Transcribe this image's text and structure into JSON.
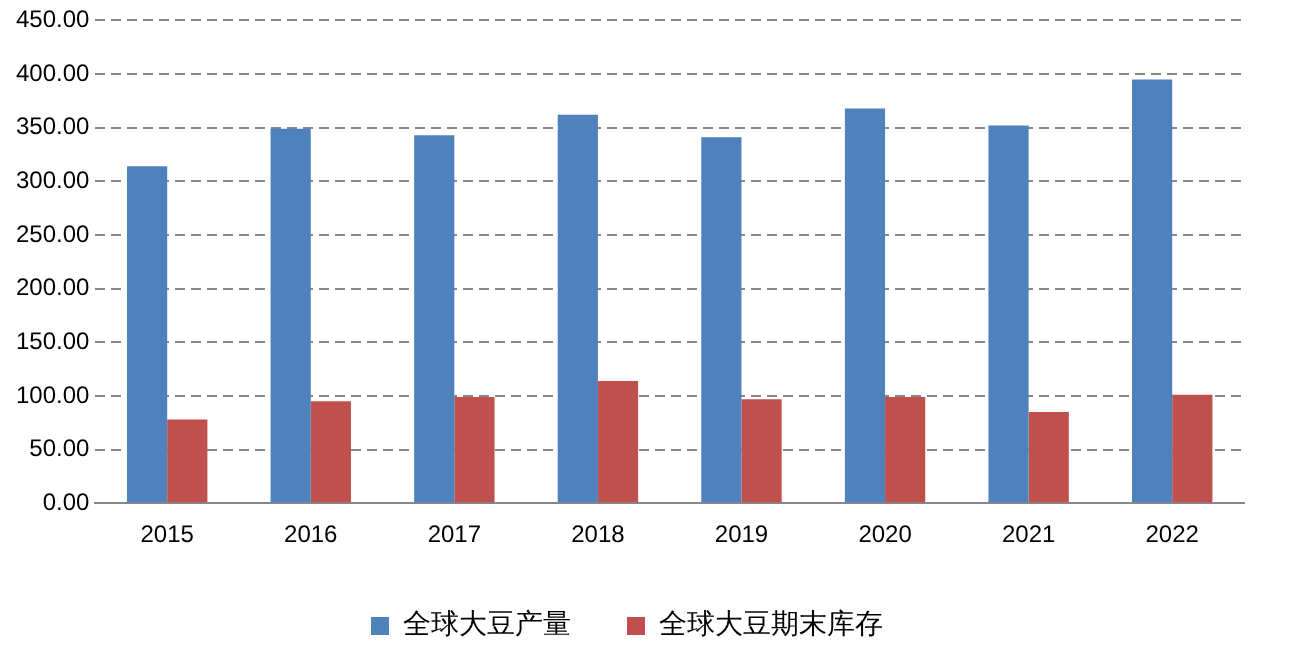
{
  "chart_data": {
    "type": "bar",
    "categories": [
      "2015",
      "2016",
      "2017",
      "2018",
      "2019",
      "2020",
      "2021",
      "2022"
    ],
    "series": [
      {
        "name": "全球大豆产量",
        "color": "#4f81bd",
        "values": [
          314,
          349,
          343,
          362,
          341,
          368,
          352,
          395
        ]
      },
      {
        "name": "全球大豆期末库存",
        "color": "#c0504d",
        "values": [
          78,
          95,
          99,
          114,
          97,
          99,
          85,
          101
        ]
      }
    ],
    "ylim": [
      0,
      450
    ],
    "yticks": [
      {
        "value": 0,
        "label": "0.00"
      },
      {
        "value": 50,
        "label": "50.00"
      },
      {
        "value": 100,
        "label": "100.00"
      },
      {
        "value": 150,
        "label": "150.00"
      },
      {
        "value": 200,
        "label": "200.00"
      },
      {
        "value": 250,
        "label": "250.00"
      },
      {
        "value": 300,
        "label": "300.00"
      },
      {
        "value": 350,
        "label": "350.00"
      },
      {
        "value": 400,
        "label": "400.00"
      },
      {
        "value": 450,
        "label": "450.00"
      }
    ],
    "grid": "y",
    "legend": "bottom"
  }
}
